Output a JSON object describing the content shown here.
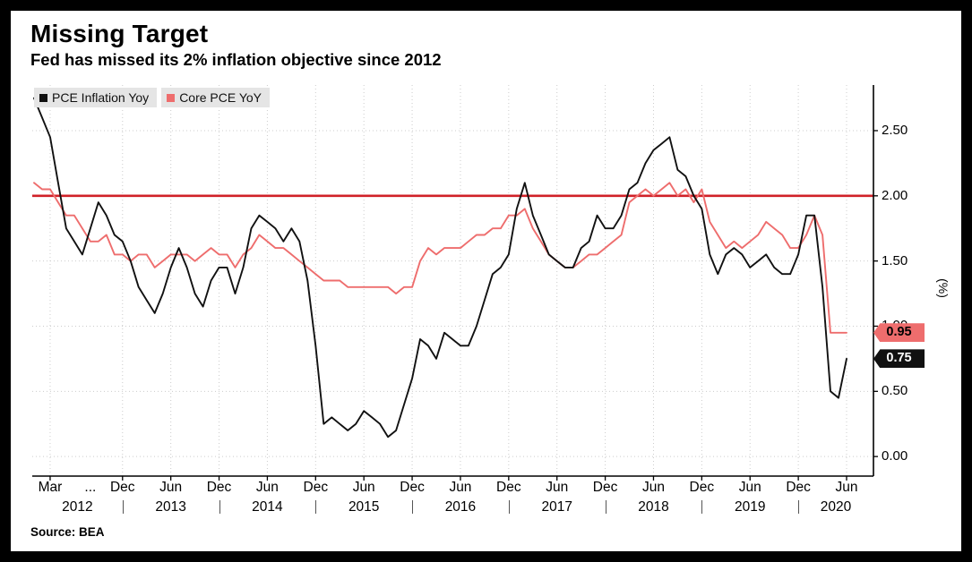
{
  "source": "Source: BEA",
  "chart_data": {
    "type": "line",
    "title": "Missing Target",
    "subtitle": "Fed has missed its 2% inflation objective since 2012",
    "ylabel": "(%)",
    "ylim": [
      -0.15,
      2.85
    ],
    "yticks": [
      "0.00",
      "0.50",
      "1.00",
      "1.50",
      "2.00",
      "2.50"
    ],
    "grid": "dotted",
    "legend_position": "top-left",
    "target": {
      "value": 2.0,
      "color": "#d02128"
    },
    "x": [
      "2012-01",
      "2012-02",
      "2012-03",
      "2012-04",
      "2012-05",
      "2012-06",
      "2012-07",
      "2012-08",
      "2012-09",
      "2012-10",
      "2012-11",
      "2012-12",
      "2013-01",
      "2013-02",
      "2013-03",
      "2013-04",
      "2013-05",
      "2013-06",
      "2013-07",
      "2013-08",
      "2013-09",
      "2013-10",
      "2013-11",
      "2013-12",
      "2014-01",
      "2014-02",
      "2014-03",
      "2014-04",
      "2014-05",
      "2014-06",
      "2014-07",
      "2014-08",
      "2014-09",
      "2014-10",
      "2014-11",
      "2014-12",
      "2015-01",
      "2015-02",
      "2015-03",
      "2015-04",
      "2015-05",
      "2015-06",
      "2015-07",
      "2015-08",
      "2015-09",
      "2015-10",
      "2015-11",
      "2015-12",
      "2016-01",
      "2016-02",
      "2016-03",
      "2016-04",
      "2016-05",
      "2016-06",
      "2016-07",
      "2016-08",
      "2016-09",
      "2016-10",
      "2016-11",
      "2016-12",
      "2017-01",
      "2017-02",
      "2017-03",
      "2017-04",
      "2017-05",
      "2017-06",
      "2017-07",
      "2017-08",
      "2017-09",
      "2017-10",
      "2017-11",
      "2017-12",
      "2018-01",
      "2018-02",
      "2018-03",
      "2018-04",
      "2018-05",
      "2018-06",
      "2018-07",
      "2018-08",
      "2018-09",
      "2018-10",
      "2018-11",
      "2018-12",
      "2019-01",
      "2019-02",
      "2019-03",
      "2019-04",
      "2019-05",
      "2019-06",
      "2019-07",
      "2019-08",
      "2019-09",
      "2019-10",
      "2019-11",
      "2019-12",
      "2020-01",
      "2020-02",
      "2020-03",
      "2020-04",
      "2020-05",
      "2020-06"
    ],
    "series": [
      {
        "name": "PCE Inflation Yoy",
        "color": "#111111",
        "last_value": 0.75,
        "values": [
          2.75,
          2.6,
          2.45,
          2.1,
          1.75,
          1.65,
          1.55,
          1.75,
          1.95,
          1.85,
          1.7,
          1.65,
          1.5,
          1.3,
          1.2,
          1.1,
          1.25,
          1.45,
          1.6,
          1.45,
          1.25,
          1.15,
          1.35,
          1.45,
          1.45,
          1.25,
          1.45,
          1.75,
          1.85,
          1.8,
          1.75,
          1.65,
          1.75,
          1.65,
          1.35,
          0.85,
          0.25,
          0.3,
          0.25,
          0.2,
          0.25,
          0.35,
          0.3,
          0.25,
          0.15,
          0.2,
          0.4,
          0.6,
          0.9,
          0.85,
          0.75,
          0.95,
          0.9,
          0.85,
          0.85,
          1.0,
          1.2,
          1.4,
          1.45,
          1.55,
          1.9,
          2.1,
          1.85,
          1.7,
          1.55,
          1.5,
          1.45,
          1.45,
          1.6,
          1.65,
          1.85,
          1.75,
          1.75,
          1.85,
          2.05,
          2.1,
          2.25,
          2.35,
          2.4,
          2.45,
          2.2,
          2.15,
          2.0,
          1.9,
          1.55,
          1.4,
          1.55,
          1.6,
          1.55,
          1.45,
          1.5,
          1.55,
          1.45,
          1.4,
          1.4,
          1.55,
          1.85,
          1.85,
          1.3,
          0.5,
          0.45,
          0.75
        ]
      },
      {
        "name": "Core PCE YoY",
        "color": "#ee6d6d",
        "last_value": 0.95,
        "values": [
          2.1,
          2.05,
          2.05,
          1.95,
          1.85,
          1.85,
          1.75,
          1.65,
          1.65,
          1.7,
          1.55,
          1.55,
          1.5,
          1.55,
          1.55,
          1.45,
          1.5,
          1.55,
          1.55,
          1.55,
          1.5,
          1.55,
          1.6,
          1.55,
          1.55,
          1.45,
          1.55,
          1.6,
          1.7,
          1.65,
          1.6,
          1.6,
          1.55,
          1.5,
          1.45,
          1.4,
          1.35,
          1.35,
          1.35,
          1.3,
          1.3,
          1.3,
          1.3,
          1.3,
          1.3,
          1.25,
          1.3,
          1.3,
          1.5,
          1.6,
          1.55,
          1.6,
          1.6,
          1.6,
          1.65,
          1.7,
          1.7,
          1.75,
          1.75,
          1.85,
          1.85,
          1.9,
          1.75,
          1.65,
          1.55,
          1.5,
          1.45,
          1.45,
          1.5,
          1.55,
          1.55,
          1.6,
          1.65,
          1.7,
          1.95,
          2.0,
          2.05,
          2.0,
          2.05,
          2.1,
          2.0,
          2.05,
          1.95,
          2.05,
          1.8,
          1.7,
          1.6,
          1.65,
          1.6,
          1.65,
          1.7,
          1.8,
          1.75,
          1.7,
          1.6,
          1.6,
          1.7,
          1.85,
          1.7,
          0.95,
          0.95,
          0.95
        ]
      }
    ],
    "xticks": [
      {
        "i": 2,
        "label": "Mar"
      },
      {
        "i": 7,
        "label": "..."
      },
      {
        "i": 11,
        "label": "Dec"
      },
      {
        "i": 17,
        "label": "Jun"
      },
      {
        "i": 23,
        "label": "Dec"
      },
      {
        "i": 29,
        "label": "Jun"
      },
      {
        "i": 35,
        "label": "Dec"
      },
      {
        "i": 41,
        "label": "Jun"
      },
      {
        "i": 47,
        "label": "Dec"
      },
      {
        "i": 53,
        "label": "Jun"
      },
      {
        "i": 59,
        "label": "Dec"
      },
      {
        "i": 65,
        "label": "Jun"
      },
      {
        "i": 71,
        "label": "Dec"
      },
      {
        "i": 77,
        "label": "Jun"
      },
      {
        "i": 83,
        "label": "Dec"
      },
      {
        "i": 89,
        "label": "Jun"
      },
      {
        "i": 95,
        "label": "Dec"
      },
      {
        "i": 101,
        "label": "Jun"
      }
    ],
    "years": [
      "2012",
      "2013",
      "2014",
      "2015",
      "2016",
      "2017",
      "2018",
      "2019",
      "2020"
    ],
    "badges": [
      {
        "label": "0.95",
        "value": 0.95,
        "bg": "#ee6d6d",
        "fg": "#000000"
      },
      {
        "label": "0.75",
        "value": 0.75,
        "bg": "#111111",
        "fg": "#ffffff"
      }
    ]
  }
}
